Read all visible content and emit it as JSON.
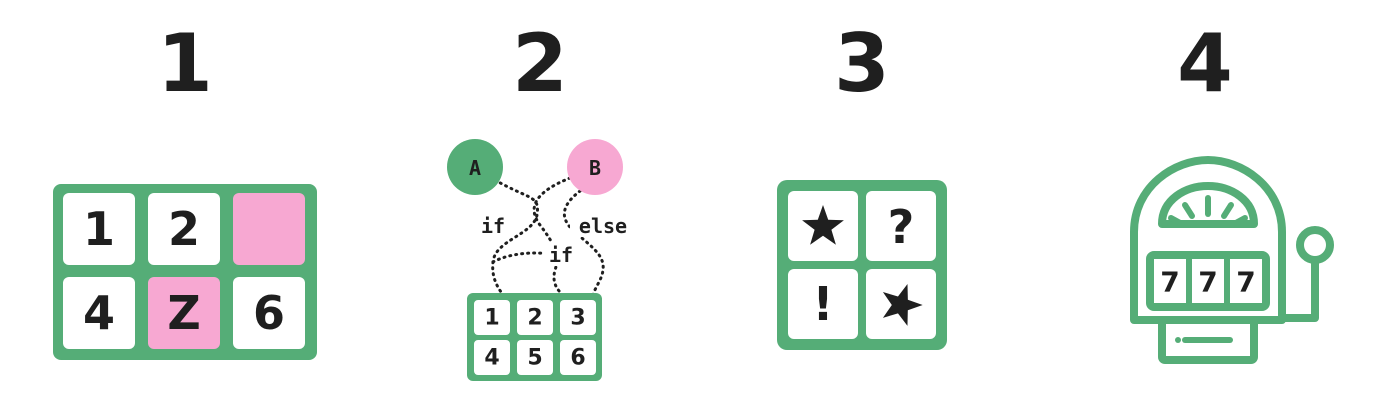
{
  "colors": {
    "green": "#55ad77",
    "pink": "#f7a8d2",
    "ink": "#1f1f1f",
    "tile": "#ffffff"
  },
  "panels": [
    {
      "number": "1",
      "grid": [
        "1",
        "2",
        "",
        "4",
        "Z",
        "6"
      ],
      "pink_tiles": [
        2,
        4
      ]
    },
    {
      "number": "2",
      "nodes": {
        "a": "A",
        "b": "B"
      },
      "branch_labels": {
        "if_left": "if",
        "else": "else",
        "if_center": "if"
      },
      "grid": [
        "1",
        "2",
        "3",
        "4",
        "5",
        "6"
      ]
    },
    {
      "number": "3",
      "grid": [
        "star-icon",
        "?",
        "!",
        "star-icon"
      ],
      "question_mark": "?",
      "exclamation_mark": "!"
    },
    {
      "number": "4",
      "reels": [
        "7",
        "7",
        "7"
      ],
      "icon": "slot-machine-icon"
    }
  ]
}
